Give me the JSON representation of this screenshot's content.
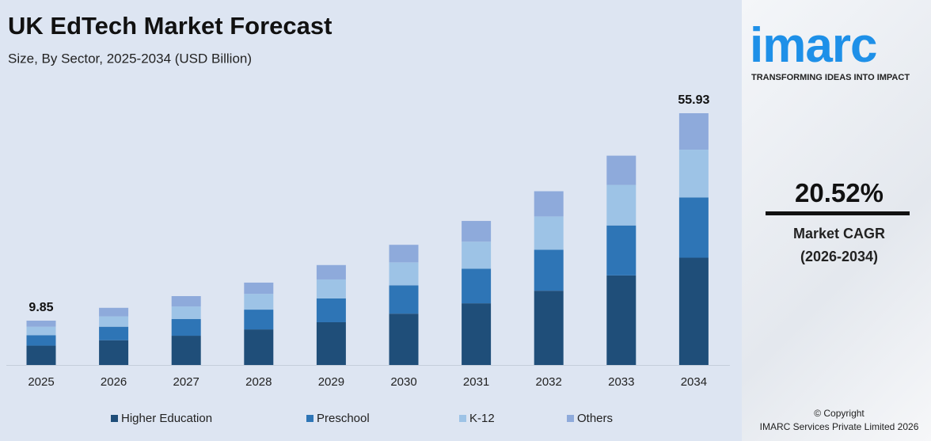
{
  "chart_data": {
    "type": "stacked_bar",
    "title": "UK EdTech Market Forecast",
    "subtitle": "Size, By Sector, 2025-2034 (USD Billion)",
    "categories": [
      "2025",
      "2026",
      "2027",
      "2028",
      "2029",
      "2030",
      "2031",
      "2032",
      "2033",
      "2034"
    ],
    "series": [
      {
        "name": "Higher Education",
        "color": "#1f4e79",
        "values": [
          4.3,
          5.5,
          6.5,
          7.9,
          9.5,
          11.4,
          13.7,
          16.5,
          19.9,
          23.83
        ]
      },
      {
        "name": "Preschool",
        "color": "#2e75b6",
        "values": [
          2.3,
          3.0,
          3.7,
          4.4,
          5.3,
          6.3,
          7.7,
          9.1,
          11.1,
          13.4
        ]
      },
      {
        "name": "K-12",
        "color": "#9dc3e6",
        "values": [
          1.9,
          2.3,
          2.8,
          3.5,
          4.2,
          5.1,
          6.0,
          7.4,
          9.0,
          10.6
        ]
      },
      {
        "name": "Others",
        "color": "#8eaadb",
        "values": [
          1.35,
          1.9,
          2.3,
          2.5,
          3.2,
          3.9,
          4.6,
          5.6,
          6.5,
          8.1
        ]
      }
    ],
    "totals": [
      9.85,
      null,
      null,
      null,
      null,
      null,
      null,
      null,
      null,
      55.93
    ]
  },
  "sidebar": {
    "logo": "imarc",
    "tagline": "TRANSFORMING IDEAS INTO IMPACT",
    "cagr": "20.52%",
    "cagr_label": "Market CAGR",
    "cagr_period": "(2026-2034)",
    "copyright": "© Copyright",
    "company": "IMARC Services Private Limited 2026"
  }
}
